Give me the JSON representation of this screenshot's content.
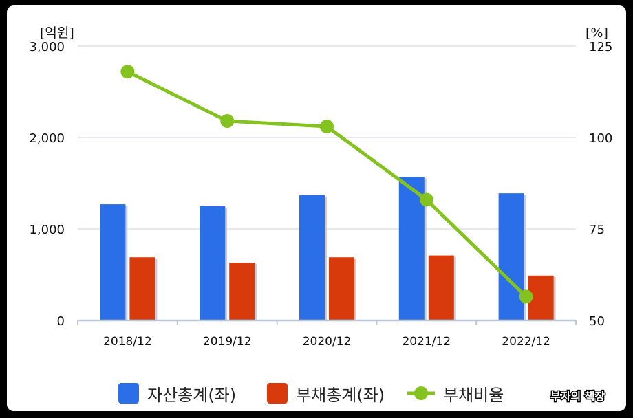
{
  "chart_data": {
    "type": "bar",
    "categories": [
      "2018/12",
      "2019/12",
      "2020/12",
      "2021/12",
      "2022/12"
    ],
    "series": [
      {
        "name": "자산총계(좌)",
        "axis": "left",
        "kind": "bar",
        "color": "#2a6ee8",
        "values": [
          1270,
          1250,
          1370,
          1570,
          1390
        ]
      },
      {
        "name": "부채총계(좌)",
        "axis": "left",
        "kind": "bar",
        "color": "#d93a0b",
        "values": [
          690,
          630,
          690,
          710,
          490
        ]
      },
      {
        "name": "부채비율",
        "axis": "right",
        "kind": "line",
        "color": "#84c220",
        "values": [
          118,
          104.5,
          103,
          83,
          56.5
        ]
      }
    ],
    "left_axis": {
      "unit": "[억원]",
      "ylim": [
        0,
        3000
      ],
      "ticks": [
        0,
        1000,
        2000,
        3000
      ],
      "tick_labels": [
        "0",
        "1,000",
        "2,000",
        "3,000"
      ]
    },
    "right_axis": {
      "unit": "[%]",
      "ylim": [
        50,
        125
      ],
      "ticks": [
        50,
        75,
        100,
        125
      ],
      "tick_labels": [
        "50",
        "75",
        "100",
        "125"
      ]
    },
    "grid": true,
    "legend_position": "bottom"
  },
  "watermark": "부자의 책장"
}
